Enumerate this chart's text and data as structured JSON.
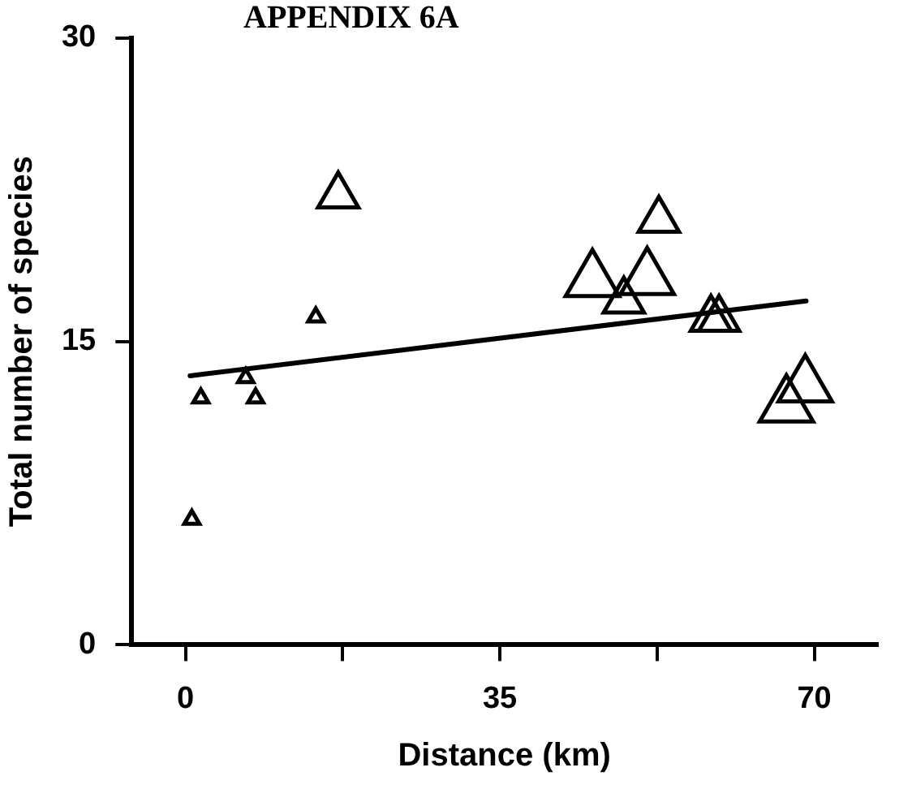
{
  "chart_data": {
    "type": "bubble",
    "title": "APPENDIX 6A",
    "xlabel": "Distance (km)",
    "ylabel": "Total number of species",
    "marker": "triangle",
    "grid": false,
    "legend": false,
    "xlim": [
      -6,
      77
    ],
    "ylim": [
      0,
      30
    ],
    "xticks": [
      0,
      {
        "value": 17.5,
        "label": null
      },
      35,
      {
        "value": 52.5,
        "label": null
      },
      70
    ],
    "yticks": [
      0,
      15,
      30
    ],
    "series": [
      {
        "color": "#000000",
        "x": [
          0.7,
          1.7,
          6.7,
          7.8,
          14.5,
          17,
          45.3,
          48.8,
          51.4,
          52.7,
          58.5,
          59.4,
          69.0,
          66.9
        ],
        "values": [
          6.2,
          12.2,
          13.2,
          12.2,
          16.2,
          22.2,
          18.0,
          17.0,
          18.1,
          21.0,
          16.1,
          16.1,
          12.8,
          11.8
        ],
        "sizes": [
          0.08,
          0.08,
          0.08,
          0.08,
          0.08,
          0.57,
          1,
          0.57,
          1,
          0.57,
          0.57,
          0.57,
          1,
          1
        ]
      },
      {
        "type": "line",
        "color": "#000000",
        "x": [
          0.5,
          69.1
        ],
        "values": [
          13.3,
          17.0
        ],
        "marker": "none"
      }
    ]
  }
}
